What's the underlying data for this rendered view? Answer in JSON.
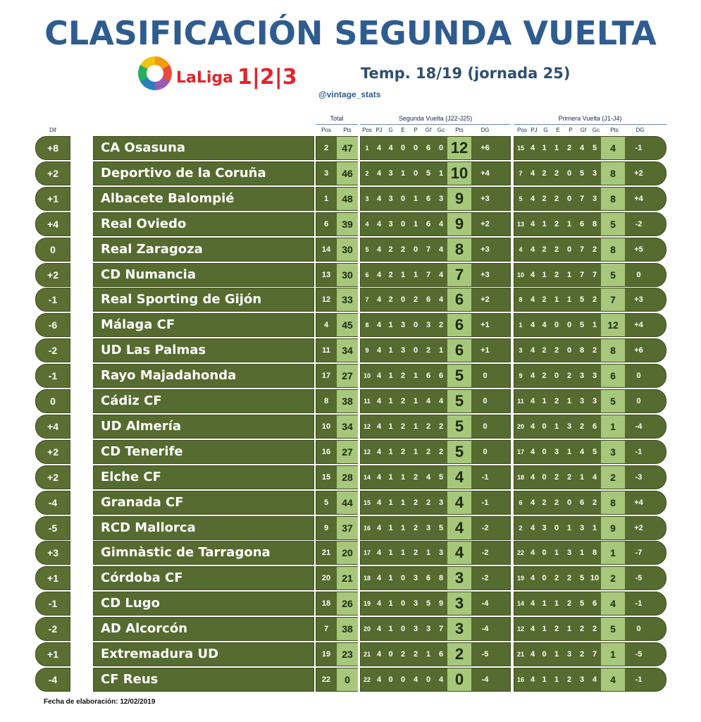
{
  "title": "CLASIFICACIÓN SEGUNDA VUELTA",
  "logo": {
    "text": "LaLiga",
    "num": "1|2|3"
  },
  "season": "Temp. 18/19 (jornada 25)",
  "handle": "@vintage_stats",
  "group_headers": {
    "total": "Total",
    "second": "Segunda Vuelta (J22-J25)",
    "first": "Primera Vuelta (J1-J4)"
  },
  "columns": {
    "dif": "Dif",
    "total": [
      "Pos",
      "Pts"
    ],
    "second": [
      "Pos",
      "PJ",
      "G",
      "E",
      "P",
      "Gf",
      "Gc",
      "Pts",
      "DG"
    ],
    "first": [
      "Pos",
      "PJ",
      "G",
      "E",
      "P",
      "Gf",
      "Gc",
      "Pts",
      "DG"
    ]
  },
  "teams": [
    {
      "dif": "+8",
      "name": "CA Osasuna",
      "total": [
        "2",
        "47"
      ],
      "second": [
        "1",
        "4",
        "4",
        "0",
        "0",
        "6",
        "0",
        "12",
        "+6"
      ],
      "first": [
        "15",
        "4",
        "1",
        "1",
        "2",
        "4",
        "5",
        "4",
        "-1"
      ]
    },
    {
      "dif": "+2",
      "name": "Deportivo de la Coruña",
      "total": [
        "3",
        "46"
      ],
      "second": [
        "2",
        "4",
        "3",
        "1",
        "0",
        "5",
        "1",
        "10",
        "+4"
      ],
      "first": [
        "7",
        "4",
        "2",
        "2",
        "0",
        "5",
        "3",
        "8",
        "+2"
      ]
    },
    {
      "dif": "+1",
      "name": "Albacete Balompié",
      "total": [
        "1",
        "48"
      ],
      "second": [
        "3",
        "4",
        "3",
        "0",
        "1",
        "6",
        "3",
        "9",
        "+3"
      ],
      "first": [
        "5",
        "4",
        "2",
        "2",
        "0",
        "7",
        "3",
        "8",
        "+4"
      ]
    },
    {
      "dif": "+4",
      "name": "Real Oviedo",
      "total": [
        "6",
        "39"
      ],
      "second": [
        "4",
        "4",
        "3",
        "0",
        "1",
        "6",
        "4",
        "9",
        "+2"
      ],
      "first": [
        "13",
        "4",
        "1",
        "2",
        "1",
        "6",
        "8",
        "5",
        "-2"
      ]
    },
    {
      "dif": "0",
      "name": "Real Zaragoza",
      "total": [
        "14",
        "30"
      ],
      "second": [
        "5",
        "4",
        "2",
        "2",
        "0",
        "7",
        "4",
        "8",
        "+3"
      ],
      "first": [
        "4",
        "4",
        "2",
        "2",
        "0",
        "7",
        "2",
        "8",
        "+5"
      ]
    },
    {
      "dif": "+2",
      "name": "CD Numancia",
      "total": [
        "13",
        "30"
      ],
      "second": [
        "6",
        "4",
        "2",
        "1",
        "1",
        "7",
        "4",
        "7",
        "+3"
      ],
      "first": [
        "10",
        "4",
        "1",
        "2",
        "1",
        "7",
        "7",
        "5",
        "0"
      ]
    },
    {
      "dif": "-1",
      "name": "Real Sporting de Gijón",
      "total": [
        "12",
        "33"
      ],
      "second": [
        "7",
        "4",
        "2",
        "0",
        "2",
        "6",
        "4",
        "6",
        "+2"
      ],
      "first": [
        "8",
        "4",
        "2",
        "1",
        "1",
        "5",
        "2",
        "7",
        "+3"
      ]
    },
    {
      "dif": "-6",
      "name": "Málaga CF",
      "total": [
        "4",
        "45"
      ],
      "second": [
        "8",
        "4",
        "1",
        "3",
        "0",
        "3",
        "2",
        "6",
        "+1"
      ],
      "first": [
        "1",
        "4",
        "4",
        "0",
        "0",
        "5",
        "1",
        "12",
        "+4"
      ]
    },
    {
      "dif": "-2",
      "name": "UD Las Palmas",
      "total": [
        "11",
        "34"
      ],
      "second": [
        "9",
        "4",
        "1",
        "3",
        "0",
        "2",
        "1",
        "6",
        "+1"
      ],
      "first": [
        "3",
        "4",
        "2",
        "2",
        "0",
        "8",
        "2",
        "8",
        "+6"
      ]
    },
    {
      "dif": "-1",
      "name": "Rayo Majadahonda",
      "total": [
        "17",
        "27"
      ],
      "second": [
        "10",
        "4",
        "1",
        "2",
        "1",
        "6",
        "6",
        "5",
        "0"
      ],
      "first": [
        "9",
        "4",
        "2",
        "0",
        "2",
        "3",
        "3",
        "6",
        "0"
      ]
    },
    {
      "dif": "0",
      "name": "Cádiz CF",
      "total": [
        "8",
        "38"
      ],
      "second": [
        "11",
        "4",
        "1",
        "2",
        "1",
        "4",
        "4",
        "5",
        "0"
      ],
      "first": [
        "11",
        "4",
        "1",
        "2",
        "1",
        "3",
        "3",
        "5",
        "0"
      ]
    },
    {
      "dif": "+4",
      "name": "UD Almería",
      "total": [
        "10",
        "34"
      ],
      "second": [
        "12",
        "4",
        "1",
        "2",
        "1",
        "2",
        "2",
        "5",
        "0"
      ],
      "first": [
        "20",
        "4",
        "0",
        "1",
        "3",
        "2",
        "6",
        "1",
        "-4"
      ]
    },
    {
      "dif": "+2",
      "name": "CD Tenerife",
      "total": [
        "16",
        "27"
      ],
      "second": [
        "12",
        "4",
        "1",
        "2",
        "1",
        "2",
        "2",
        "5",
        "0"
      ],
      "first": [
        "17",
        "4",
        "0",
        "3",
        "1",
        "4",
        "5",
        "3",
        "-1"
      ]
    },
    {
      "dif": "+2",
      "name": "Elche CF",
      "total": [
        "15",
        "28"
      ],
      "second": [
        "14",
        "4",
        "1",
        "1",
        "2",
        "4",
        "5",
        "4",
        "-1"
      ],
      "first": [
        "18",
        "4",
        "0",
        "2",
        "2",
        "1",
        "4",
        "2",
        "-3"
      ]
    },
    {
      "dif": "-4",
      "name": "Granada CF",
      "total": [
        "5",
        "44"
      ],
      "second": [
        "15",
        "4",
        "1",
        "1",
        "2",
        "2",
        "3",
        "4",
        "-1"
      ],
      "first": [
        "6",
        "4",
        "2",
        "2",
        "0",
        "6",
        "2",
        "8",
        "+4"
      ]
    },
    {
      "dif": "-5",
      "name": "RCD Mallorca",
      "total": [
        "9",
        "37"
      ],
      "second": [
        "16",
        "4",
        "1",
        "1",
        "2",
        "3",
        "5",
        "4",
        "-2"
      ],
      "first": [
        "2",
        "4",
        "3",
        "0",
        "1",
        "3",
        "1",
        "9",
        "+2"
      ]
    },
    {
      "dif": "+3",
      "name": "Gimnàstic de Tarragona",
      "total": [
        "21",
        "20"
      ],
      "second": [
        "17",
        "4",
        "1",
        "1",
        "2",
        "1",
        "3",
        "4",
        "-2"
      ],
      "first": [
        "22",
        "4",
        "0",
        "1",
        "3",
        "1",
        "8",
        "1",
        "-7"
      ]
    },
    {
      "dif": "+1",
      "name": "Córdoba CF",
      "total": [
        "20",
        "21"
      ],
      "second": [
        "18",
        "4",
        "1",
        "0",
        "3",
        "6",
        "8",
        "3",
        "-2"
      ],
      "first": [
        "19",
        "4",
        "0",
        "2",
        "2",
        "5",
        "10",
        "2",
        "-5"
      ]
    },
    {
      "dif": "-1",
      "name": "CD Lugo",
      "total": [
        "18",
        "26"
      ],
      "second": [
        "19",
        "4",
        "1",
        "0",
        "3",
        "5",
        "9",
        "3",
        "-4"
      ],
      "first": [
        "14",
        "4",
        "1",
        "1",
        "2",
        "5",
        "6",
        "4",
        "-1"
      ]
    },
    {
      "dif": "-2",
      "name": "AD Alcorcón",
      "total": [
        "7",
        "38"
      ],
      "second": [
        "20",
        "4",
        "1",
        "0",
        "3",
        "3",
        "7",
        "3",
        "-4"
      ],
      "first": [
        "12",
        "4",
        "1",
        "2",
        "1",
        "2",
        "2",
        "5",
        "0"
      ]
    },
    {
      "dif": "+1",
      "name": "Extremadura UD",
      "total": [
        "19",
        "23"
      ],
      "second": [
        "21",
        "4",
        "0",
        "2",
        "2",
        "1",
        "6",
        "2",
        "-5"
      ],
      "first": [
        "21",
        "4",
        "0",
        "1",
        "3",
        "2",
        "7",
        "1",
        "-5"
      ]
    },
    {
      "dif": "-4",
      "name": "CF Reus",
      "total": [
        "22",
        "0"
      ],
      "second": [
        "22",
        "4",
        "0",
        "0",
        "4",
        "0",
        "4",
        "0",
        "-4"
      ],
      "first": [
        "16",
        "4",
        "1",
        "1",
        "2",
        "3",
        "4",
        "4",
        "-1"
      ]
    }
  ],
  "footer": "Fecha de elaboración: 12/02/2019"
}
